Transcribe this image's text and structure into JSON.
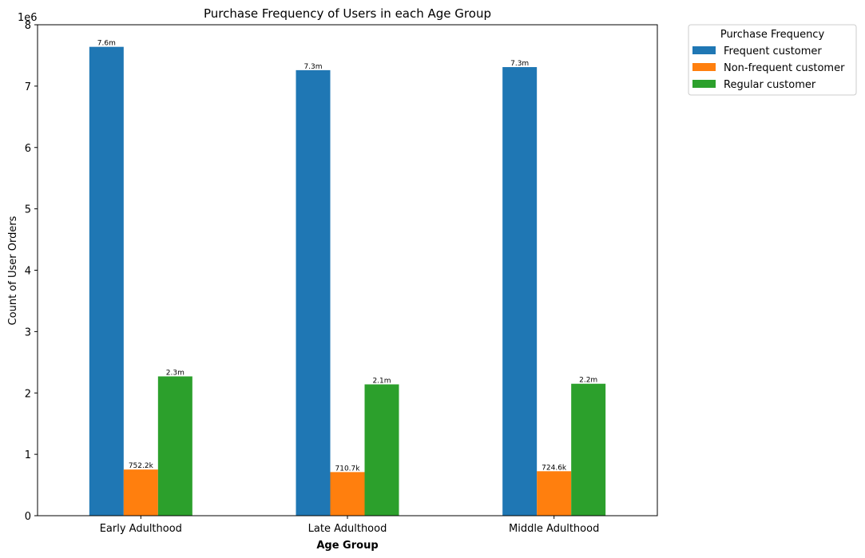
{
  "chart_data": {
    "type": "bar",
    "title": "Purchase Frequency of Users in each Age Group",
    "xlabel": "Age Group",
    "ylabel": "Count of User Orders",
    "y_multiplier_label": "1e6",
    "categories": [
      "Early Adulthood",
      "Late Adulthood",
      "Middle Adulthood"
    ],
    "series": [
      {
        "name": "Frequent customer",
        "color": "#1f77b4",
        "values": [
          7640000,
          7260000,
          7310000
        ],
        "labels": [
          "7.6m",
          "7.3m",
          "7.3m"
        ]
      },
      {
        "name": "Non-frequent customer",
        "color": "#ff7f0e",
        "values": [
          752200,
          710700,
          724600
        ],
        "labels": [
          "752.2k",
          "710.7k",
          "724.6k"
        ]
      },
      {
        "name": "Regular customer",
        "color": "#2ca02c",
        "values": [
          2270000,
          2140000,
          2150000
        ],
        "labels": [
          "2.3m",
          "2.1m",
          "2.2m"
        ]
      }
    ],
    "ylim": [
      0,
      8000000
    ],
    "yticks": [
      0,
      1000000,
      2000000,
      3000000,
      4000000,
      5000000,
      6000000,
      7000000,
      8000000
    ],
    "ytick_labels": [
      "0",
      "1",
      "2",
      "3",
      "4",
      "5",
      "6",
      "7",
      "8"
    ],
    "legend_title": "Purchase Frequency",
    "legend_position": "outside-top-right",
    "grid": false
  }
}
